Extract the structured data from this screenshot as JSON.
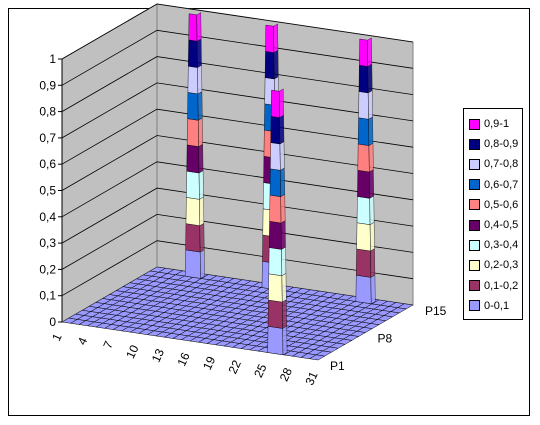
{
  "chart_data": {
    "type": "3d-surface",
    "title": "",
    "zlim": [
      0,
      1
    ],
    "z_ticks": [
      "0",
      "0,1",
      "0,2",
      "0,3",
      "0,4",
      "0,5",
      "0,6",
      "0,7",
      "0,8",
      "0,9",
      "1"
    ],
    "x_ticks": [
      "1",
      "4",
      "7",
      "10",
      "13",
      "16",
      "19",
      "22",
      "25",
      "28",
      "31"
    ],
    "depth_ticks": [
      "P1",
      "P8",
      "P15"
    ],
    "peaks": [
      {
        "x": 6,
        "depth": "P15",
        "value": 1.0
      },
      {
        "x": 15,
        "depth": "P15",
        "value": 1.0
      },
      {
        "x": 26,
        "depth": "P15",
        "value": 1.0
      },
      {
        "x": 26,
        "depth": "P1",
        "value": 1.0
      }
    ],
    "baseline": 0,
    "legend_position": "right",
    "legend": [
      {
        "label": "0,9-1",
        "color": "#ff00ff"
      },
      {
        "label": "0,8-0,9",
        "color": "#000080"
      },
      {
        "label": "0,7-0,8",
        "color": "#ccccff"
      },
      {
        "label": "0,6-0,7",
        "color": "#0066cc"
      },
      {
        "label": "0,5-0,6",
        "color": "#ff8080"
      },
      {
        "label": "0,4-0,5",
        "color": "#660066"
      },
      {
        "label": "0,3-0,4",
        "color": "#ccffff"
      },
      {
        "label": "0,2-0,3",
        "color": "#ffffcc"
      },
      {
        "label": "0,1-0,2",
        "color": "#993366"
      },
      {
        "label": "0-0,1",
        "color": "#9999ff"
      }
    ]
  }
}
